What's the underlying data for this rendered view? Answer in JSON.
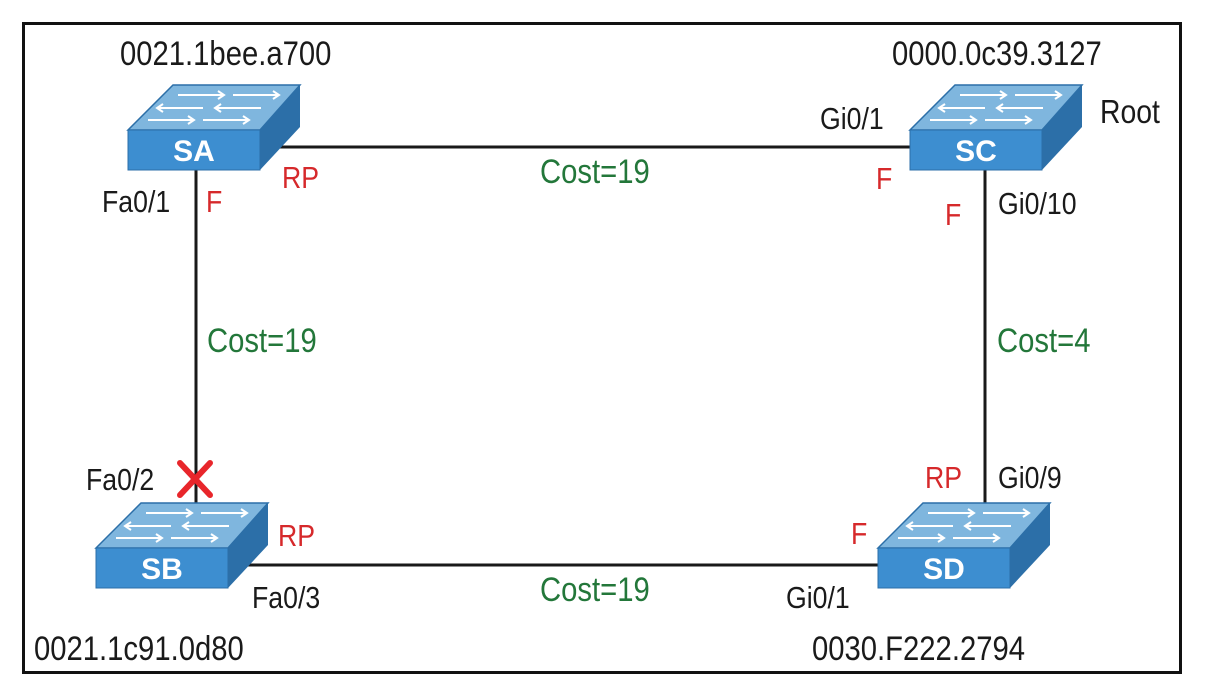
{
  "switches": [
    {
      "id": "SA",
      "label": "SA",
      "mac": "0021.1bee.a700"
    },
    {
      "id": "SB",
      "label": "SB",
      "mac": "0021.1c91.0d80"
    },
    {
      "id": "SC",
      "label": "SC",
      "mac": "0000.0c39.3127",
      "note": "Root"
    },
    {
      "id": "SD",
      "label": "SD",
      "mac": "0030.F222.2794"
    }
  ],
  "links": {
    "sa_sc": {
      "cost": "Cost=19",
      "sa_port": "",
      "sa_role": "RP",
      "sc_port": "Gi0/1",
      "sc_role": "F"
    },
    "sa_sb": {
      "cost": "Cost=19",
      "sa_port": "Fa0/1",
      "sa_role": "F",
      "sb_port": "Fa0/2",
      "sb_state": "blocked"
    },
    "sc_sd": {
      "cost": "Cost=4",
      "sc_port": "Gi0/10",
      "sc_role": "F",
      "sd_port": "Gi0/9",
      "sd_role": "RP"
    },
    "sb_sd": {
      "cost": "Cost=19",
      "sb_port": "Fa0/3",
      "sb_role": "RP",
      "sd_port": "Gi0/1",
      "sd_role": "F"
    }
  },
  "colors": {
    "switch_top": "#7fb6de",
    "switch_front": "#3d8ed0",
    "switch_side": "#2c6fa8",
    "role_text": "#d6292b",
    "cost_text": "#23773a",
    "block_mark": "#e8262b",
    "line": "#1a1a1a"
  }
}
